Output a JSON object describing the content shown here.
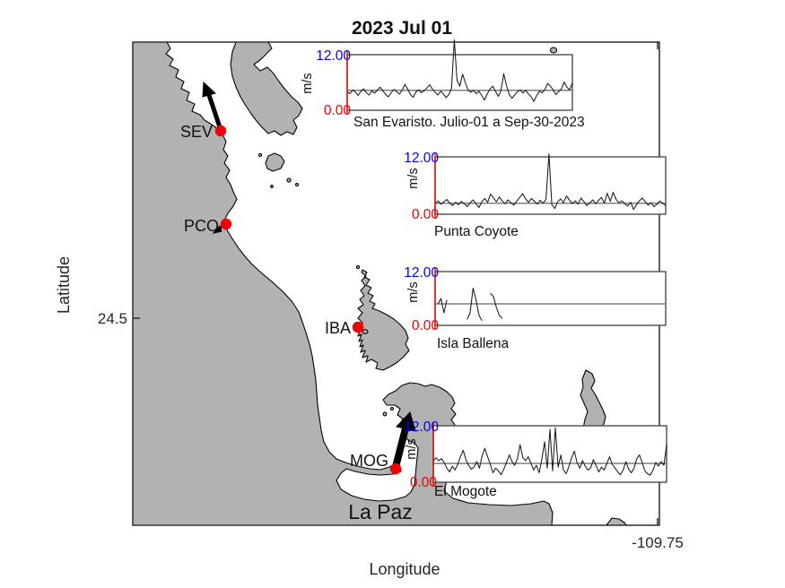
{
  "figure": {
    "title": "2023 Jul 01",
    "xlabel": "Longitude",
    "ylabel": "Latitude",
    "x_tick_label": "-109.75",
    "y_tick_label": "24.5",
    "city_label": "La Paz"
  },
  "colors": {
    "land": "#b2b2b2",
    "sea": "#ffffff",
    "station_marker": "#f00000",
    "ytick_top_blue": "#0000ee",
    "ytick_bottom_red": "#f00000",
    "series": "#1a1a1a"
  },
  "stations": [
    {
      "code": "SEV",
      "marker": "red-dot",
      "has_wind_arrow": true,
      "arrow_direction": "up-left,  long"
    },
    {
      "code": "PCO",
      "marker": "red-dot",
      "has_wind_arrow": true,
      "arrow_direction": "down-left, short"
    },
    {
      "code": "IBA",
      "marker": "red-dot",
      "has_wind_arrow": false,
      "arrow_direction": ""
    },
    {
      "code": "MOG",
      "marker": "red-dot",
      "has_wind_arrow": true,
      "arrow_direction": "up-right, long thick"
    }
  ],
  "chart_data": [
    {
      "type": "line",
      "title": "San Evaristo. Julio-01 a Sep-30-2023",
      "ylabel": "m/s",
      "ylim": [
        0,
        12
      ],
      "ytick_labels": {
        "top": "12.00",
        "bottom": "0.00"
      },
      "mean_line": 4.3,
      "values": [
        4.0,
        3.6,
        4.4,
        3.9,
        3.2,
        4.1,
        4.6,
        3.8,
        3.3,
        4.2,
        3.7,
        4.4,
        5.0,
        4.2,
        3.4,
        2.9,
        3.8,
        4.5,
        4.0,
        3.5,
        4.3,
        5.6,
        4.6,
        3.4,
        2.8,
        3.9,
        4.4,
        3.8,
        4.2,
        4.8,
        5.5,
        4.6,
        3.9,
        3.3,
        4.1,
        3.6,
        2.7,
        3.4,
        4.7,
        15.2,
        6.5,
        5.2,
        7.8,
        6.0,
        4.4,
        3.9,
        4.3,
        3.6,
        4.1,
        3.2,
        2.2,
        3.5,
        4.6,
        5.2,
        4.1,
        3.0,
        4.2,
        7.9,
        5.4,
        3.4,
        2.6,
        3.3,
        4.0,
        4.4,
        3.7,
        4.3,
        3.5,
        2.9,
        1.9,
        3.2,
        4.1,
        3.8,
        4.5,
        5.8,
        5.2,
        4.4,
        3.4,
        4.0,
        4.6,
        6.1,
        5.0,
        4.4,
        5.9
      ]
    },
    {
      "type": "line",
      "title": "Punta Coyote",
      "ylabel": "m/s",
      "ylim": [
        0,
        12
      ],
      "ytick_labels": {
        "top": "12.00",
        "bottom": "0.00"
      },
      "mean_line": 2.3,
      "values": [
        2.2,
        2.8,
        2.1,
        2.6,
        3.1,
        2.3,
        1.8,
        2.5,
        2.0,
        2.7,
        2.2,
        1.6,
        2.4,
        3.0,
        2.2,
        1.4,
        2.6,
        3.3,
        2.5,
        4.2,
        3.4,
        2.6,
        3.6,
        2.8,
        2.2,
        3.0,
        2.4,
        1.9,
        2.8,
        3.5,
        4.3,
        3.2,
        2.5,
        3.3,
        2.7,
        2.1,
        2.9,
        2.3,
        3.1,
        12.6,
        2.0,
        1.2,
        2.6,
        3.2,
        2.4,
        3.8,
        3.0,
        2.2,
        2.8,
        2.1,
        3.4,
        2.6,
        1.8,
        2.4,
        3.0,
        2.2,
        2.9,
        3.5,
        2.3,
        4.4,
        2.7,
        4.6,
        3.1,
        2.4,
        2.8,
        2.2,
        1.7,
        2.5,
        1.0,
        2.0,
        2.8,
        3.4,
        2.6,
        1.9,
        2.4,
        1.6,
        2.1,
        2.8,
        2.3,
        1.8
      ]
    },
    {
      "type": "line",
      "title": "Isla Ballena",
      "ylabel": "m/s",
      "ylim": [
        0,
        12
      ],
      "ytick_labels": {
        "top": "12.00",
        "bottom": "0.00"
      },
      "mean_line": 4.8,
      "values": [
        null,
        4.8,
        6.0,
        2.8,
        5.6,
        null,
        null,
        null,
        null,
        null,
        null,
        1.4,
        2.8,
        8.3,
        5.8,
        2.3,
        1.1,
        null,
        null,
        7.1,
        6.4,
        4.0,
        2.2,
        1.6,
        null,
        null,
        null,
        null,
        null,
        null,
        null,
        null,
        null,
        null,
        null,
        null,
        null,
        null,
        null,
        null,
        null,
        null,
        null,
        null,
        null,
        null,
        null,
        null,
        null,
        null,
        null,
        null,
        null,
        null,
        null,
        null,
        null,
        null,
        null,
        null,
        null,
        null,
        null,
        null,
        null,
        null,
        null,
        null,
        null,
        null,
        null,
        null,
        null,
        null,
        null,
        null,
        null,
        null,
        null,
        null
      ]
    },
    {
      "type": "line",
      "title": "El Mogote",
      "ylabel": "m/s",
      "ylim": [
        0,
        12
      ],
      "ytick_labels": {
        "top": "12.00",
        "bottom": "0.00"
      },
      "mean_line": 4.0,
      "values": [
        4.5,
        5.2,
        4.6,
        5.0,
        4.2,
        3.0,
        2.2,
        3.4,
        2.6,
        3.8,
        5.4,
        6.8,
        4.8,
        3.6,
        2.8,
        3.2,
        4.4,
        3.0,
        5.6,
        7.2,
        5.4,
        3.8,
        2.0,
        3.0,
        2.4,
        1.6,
        2.8,
        4.2,
        5.8,
        4.4,
        3.6,
        5.0,
        8.0,
        5.2,
        4.6,
        5.4,
        4.0,
        2.6,
        3.6,
        2.0,
        4.8,
        8.6,
        3.0,
        11.2,
        2.4,
        11.6,
        3.2,
        5.8,
        2.6,
        1.8,
        3.4,
        5.2,
        6.6,
        4.2,
        3.0,
        4.6,
        3.4,
        2.6,
        3.0,
        4.8,
        3.6,
        2.2,
        3.2,
        2.6,
        4.0,
        5.4,
        3.8,
        3.0,
        2.2,
        1.6,
        2.6,
        4.4,
        2.8,
        2.0,
        3.0,
        5.0,
        5.8,
        4.2,
        2.4,
        1.8,
        1.5,
        2.6,
        4.2,
        3.4,
        4.4,
        3.6,
        7.9
      ]
    }
  ]
}
